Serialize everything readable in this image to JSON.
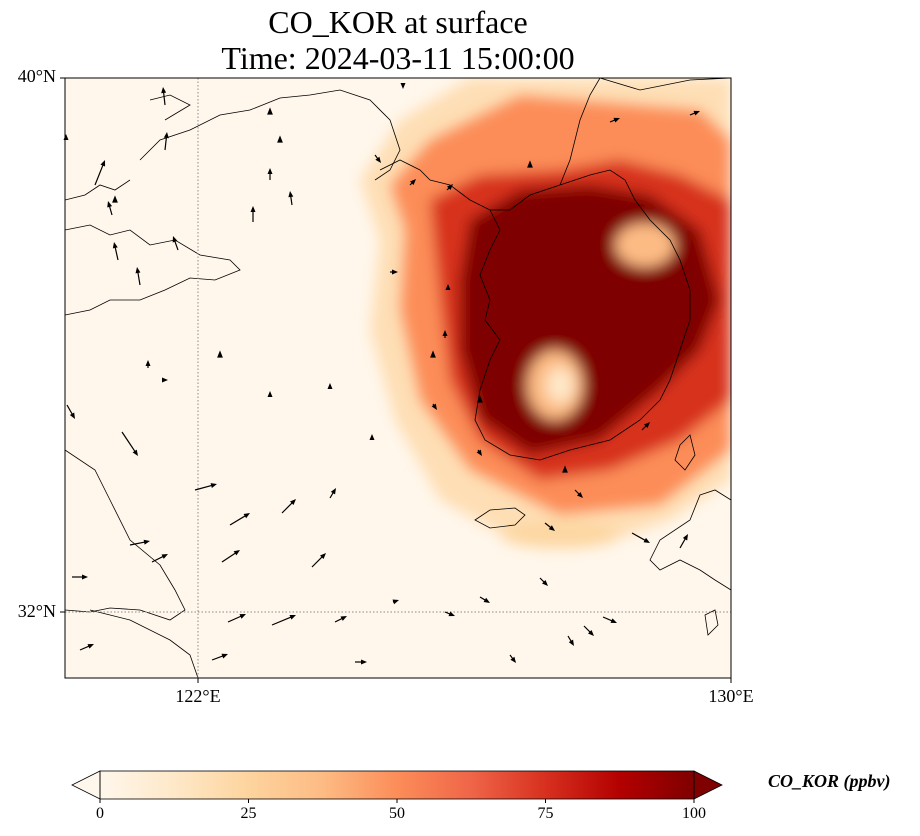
{
  "title": {
    "line1": "CO_KOR at surface",
    "line2": "Time: 2024-03-11 15:00:00"
  },
  "map": {
    "extent": {
      "lon_min": 120,
      "lon_max": 130,
      "lat_min": 31,
      "lat_max": 40
    },
    "lat_ticks": [
      {
        "value": 40,
        "label": "40°N"
      },
      {
        "value": 32,
        "label": "32°N"
      }
    ],
    "lon_ticks": [
      {
        "value": 122,
        "label": "122°E"
      },
      {
        "value": 130,
        "label": "130°E"
      }
    ],
    "gridlines": {
      "lon": [
        122
      ],
      "lat": [
        32
      ],
      "style": "dotted"
    },
    "field_colormap": "OrRd",
    "field_description": "CO concentration high over the Korean peninsula (saturated >100 ppbv), light elsewhere",
    "wind_vectors": true
  },
  "colorbar": {
    "label": "CO_KOR (ppbv)",
    "min": 0,
    "max": 100,
    "ticks": [
      "0",
      "25",
      "50",
      "75",
      "100"
    ],
    "extend": "both",
    "colors": [
      "#fff7ec",
      "#fee8c8",
      "#fdd49e",
      "#fdbb84",
      "#fc8d59",
      "#ef6548",
      "#d7301f",
      "#b30000",
      "#7f0000"
    ]
  }
}
